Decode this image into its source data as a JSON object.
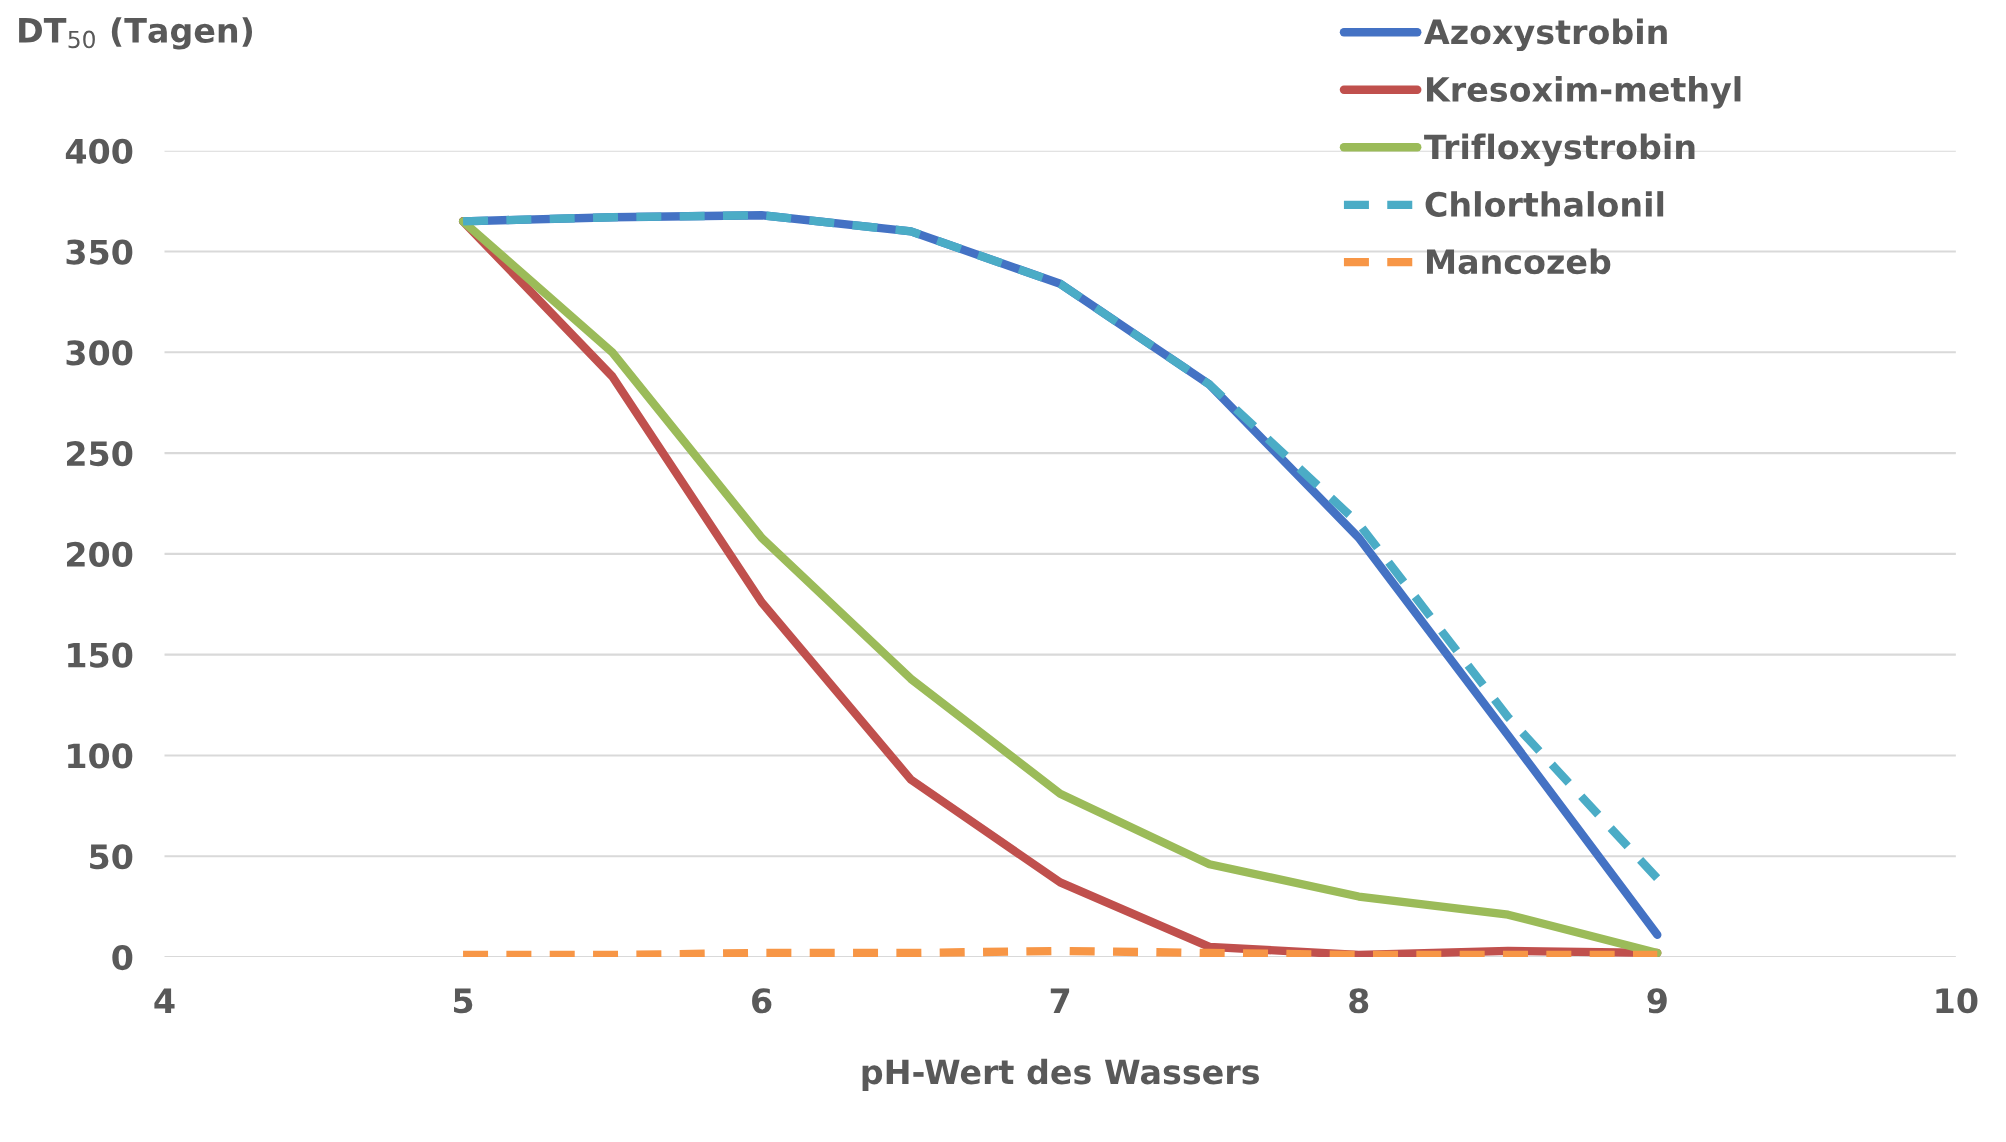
{
  "chart_data": {
    "type": "line",
    "xlabel": "pH-Wert des Wassers",
    "ylabel": "DT$_{50}$ (Tagen)",
    "x": [
      5,
      5.5,
      6,
      6.5,
      7,
      7.5,
      8,
      8.5,
      9
    ],
    "xlim": [
      4,
      10
    ],
    "xticks": [
      4,
      5,
      6,
      7,
      8,
      9,
      10
    ],
    "ylim": [
      0,
      400
    ],
    "yticks": [
      0,
      50,
      100,
      150,
      200,
      250,
      300,
      350,
      400
    ],
    "grid": "y",
    "legend": "top right",
    "marker": "none",
    "series": [
      {
        "name": "Azoxystrobin",
        "color": "#4472c4",
        "line_style": "solid",
        "values": [
          365,
          367,
          368,
          360,
          334,
          284,
          208,
          110,
          11
        ]
      },
      {
        "name": "Kresoxim-methyl",
        "color": "#c0504d",
        "line_style": "solid",
        "values": [
          365,
          288,
          176,
          88,
          37,
          5,
          1,
          3,
          2
        ]
      },
      {
        "name": "Trifloxystrobin",
        "color": "#9bbb59",
        "line_style": "solid",
        "values": [
          365,
          300,
          208,
          138,
          81,
          46,
          30,
          21,
          2
        ]
      },
      {
        "name": "Chlorthalonil",
        "color": "#4bacc6",
        "line_style": "dashed",
        "values": [
          365,
          367,
          368,
          360,
          334,
          284,
          215,
          119,
          39
        ]
      },
      {
        "name": "Mancozeb",
        "color": "#f79646",
        "line_style": "dashed",
        "values": [
          1,
          1,
          2,
          2,
          3,
          2,
          1,
          1,
          1
        ]
      }
    ]
  }
}
